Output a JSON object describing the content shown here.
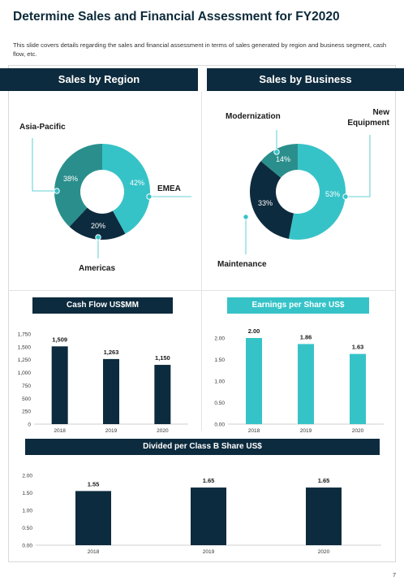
{
  "page": {
    "title": "Determine Sales and Financial Assessment for FY2020",
    "description": "This slide covers details regarding the sales and financial assessment in terms of sales generated by region and business segment, cash flow, etc.",
    "page_number": "7"
  },
  "sections": {
    "sales_by_region": "Sales by Region",
    "sales_by_business": "Sales by Business",
    "cash_flow": "Cash Flow US$MM",
    "eps": "Earnings per Share US$",
    "dividend": "Divided per Class B Share US$"
  },
  "colors": {
    "navy": "#0d2b3e",
    "teal": "#36c3c8",
    "teal_dark": "#2a8f8c"
  },
  "chart_data": [
    {
      "type": "pie",
      "title": "Sales by Region",
      "labels": [
        "Asia-Pacific",
        "EMEA",
        "Americas"
      ],
      "values": [
        38,
        42,
        20
      ],
      "value_labels": [
        "38%",
        "42%",
        "20%"
      ],
      "colors": [
        "#2a8f8c",
        "#36c3c8",
        "#0d2b3e"
      ]
    },
    {
      "type": "pie",
      "title": "Sales by Business",
      "labels": [
        "Modernization",
        "New Equipment",
        "Maintenance"
      ],
      "values": [
        14,
        53,
        33
      ],
      "value_labels": [
        "14%",
        "53%",
        "33%"
      ],
      "colors": [
        "#2a8f8c",
        "#36c3c8",
        "#0d2b3e"
      ]
    },
    {
      "type": "bar",
      "title": "Cash Flow US$MM",
      "categories": [
        "2018",
        "2019",
        "2020"
      ],
      "values": [
        1509,
        1263,
        1150
      ],
      "value_labels": [
        "1,509",
        "1,263",
        "1,150"
      ],
      "ylim": [
        0,
        1750
      ],
      "yticks": [
        "0",
        "250",
        "500",
        "750",
        "1,000",
        "1,250",
        "1,500",
        "1,750"
      ],
      "color": "#0d2b3e"
    },
    {
      "type": "bar",
      "title": "Earnings per Share US$",
      "categories": [
        "2018",
        "2019",
        "2020"
      ],
      "values": [
        2.0,
        1.86,
        1.63
      ],
      "value_labels": [
        "2.00",
        "1.86",
        "1.63"
      ],
      "ylim": [
        0,
        2.0
      ],
      "yticks": [
        "0.00",
        "0.50",
        "1.00",
        "1.50",
        "2.00"
      ],
      "color": "#36c3c8"
    },
    {
      "type": "bar",
      "title": "Divided per Class B Share US$",
      "categories": [
        "2018",
        "2019",
        "2020"
      ],
      "values": [
        1.55,
        1.65,
        1.65
      ],
      "value_labels": [
        "1.55",
        "1.65",
        "1.65"
      ],
      "ylim": [
        0,
        2.0
      ],
      "yticks": [
        "0.00",
        "0.50",
        "1.00",
        "1.50",
        "2.00"
      ],
      "color": "#0d2b3e"
    }
  ]
}
